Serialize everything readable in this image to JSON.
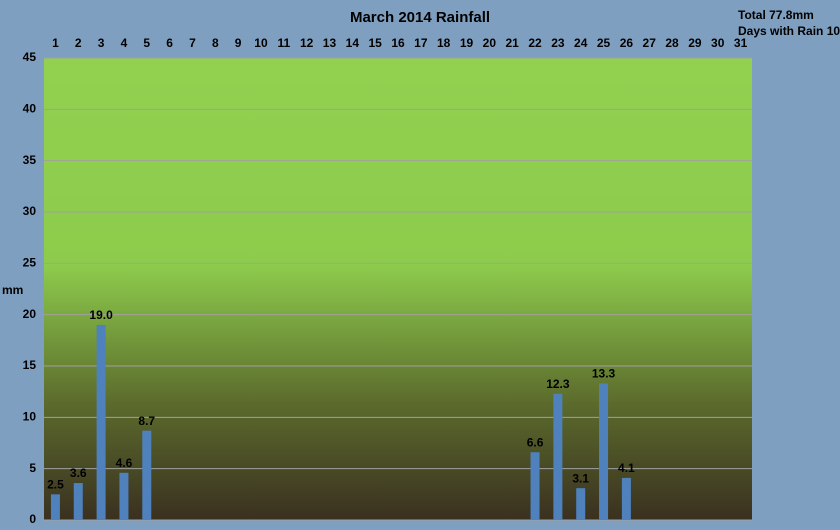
{
  "chart_data": {
    "type": "bar",
    "title": "March 2014 Rainfall",
    "annotations": [
      "Total 77.8mm",
      "Days with Rain 10"
    ],
    "y_label": "mm",
    "categories": [
      1,
      2,
      3,
      4,
      5,
      6,
      7,
      8,
      9,
      10,
      11,
      12,
      13,
      14,
      15,
      16,
      17,
      18,
      19,
      20,
      21,
      22,
      23,
      24,
      25,
      26,
      27,
      28,
      29,
      30,
      31
    ],
    "values": [
      2.5,
      3.6,
      19.0,
      4.6,
      8.7,
      null,
      null,
      null,
      null,
      null,
      null,
      null,
      null,
      null,
      null,
      null,
      null,
      null,
      null,
      null,
      null,
      6.6,
      12.3,
      3.1,
      13.3,
      4.1,
      null,
      null,
      null,
      null,
      null
    ],
    "value_labels": [
      "2.5",
      "3.6",
      "19.0",
      "4.6",
      "8.7",
      null,
      null,
      null,
      null,
      null,
      null,
      null,
      null,
      null,
      null,
      null,
      null,
      null,
      null,
      null,
      null,
      "6.6",
      "12.3",
      "3.1",
      "13.3",
      "4.1",
      null,
      null,
      null,
      null,
      null
    ],
    "color": "#4f81bd",
    "ylim": [
      0,
      45
    ],
    "yticks": [
      0,
      5,
      10,
      15,
      20,
      25,
      30,
      35,
      40,
      45
    ],
    "grid": true
  }
}
